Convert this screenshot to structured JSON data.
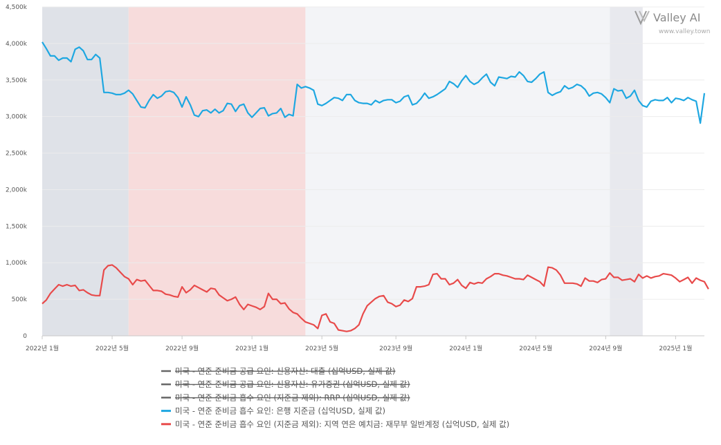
{
  "brand": {
    "name": "Valley AI",
    "url": "www.valley.town",
    "icon": "valley-logo-icon"
  },
  "chart_data": {
    "type": "line",
    "x_start": "2022-01",
    "x_ticks": [
      "2022년 1월",
      "2022년 5월",
      "2022년 9월",
      "2023년 1월",
      "2023년 5월",
      "2023년 9월",
      "2024년 1월",
      "2024년 5월",
      "2024년 9월",
      "2025년 1월"
    ],
    "x_tick_weeks": [
      0,
      17,
      34,
      51,
      68,
      86,
      103,
      120,
      137,
      154
    ],
    "y_ticks": [
      "0",
      "500k",
      "1,000k",
      "1,500k",
      "2,000k",
      "2,500k",
      "3,000k",
      "3,500k",
      "4,000k",
      "4,500k"
    ],
    "ylim": [
      0,
      4500
    ],
    "shaded_regions": [
      {
        "from_week": 0,
        "to_week": 21,
        "color": "#dfe2e8"
      },
      {
        "from_week": 21,
        "to_week": 64,
        "color": "#f7dcdc"
      },
      {
        "from_week": 64,
        "to_week": 138,
        "color": "#f3f4f7"
      },
      {
        "from_week": 138,
        "to_week": 146,
        "color": "#e8e9ee"
      }
    ],
    "legend": [
      {
        "label": "미국 - 연준 준비금 공급 요인: 신용자산: 대출 (십억USD, 실제 값)",
        "color": "#666666",
        "enabled": false
      },
      {
        "label": "미국 - 연준 준비금 공급 요인: 신용자산: 유가증권 (십억USD, 실제 값)",
        "color": "#666666",
        "enabled": false
      },
      {
        "label": "미국 - 연준 준비금 흡수 요인 (지준금 제외): RRP (십억USD, 실제 값)",
        "color": "#666666",
        "enabled": false
      },
      {
        "label": "미국 - 연준 준비금 흡수 요인: 은행 지준금 (십억USD, 실제 값)",
        "color": "#1ea7e1",
        "enabled": true
      },
      {
        "label": "미국 - 연준 준비금 흡수 요인 (지준금 제외): 지역 연은 예치금: 재무부 일반계정 (십억USD, 실제 값)",
        "color": "#e84a4a",
        "enabled": true
      }
    ],
    "series": [
      {
        "name": "미국 - 연준 준비금 흡수 요인: 은행 지준금 (십억USD, 실제 값)",
        "color": "#1ea7e1",
        "values": [
          4020,
          3930,
          3830,
          3830,
          3770,
          3800,
          3800,
          3750,
          3920,
          3950,
          3900,
          3780,
          3780,
          3850,
          3800,
          3330,
          3330,
          3320,
          3300,
          3300,
          3320,
          3360,
          3310,
          3220,
          3130,
          3120,
          3220,
          3300,
          3250,
          3280,
          3340,
          3350,
          3330,
          3260,
          3130,
          3270,
          3160,
          3020,
          3000,
          3080,
          3090,
          3050,
          3100,
          3050,
          3080,
          3180,
          3170,
          3070,
          3150,
          3170,
          3050,
          2990,
          3050,
          3110,
          3120,
          3010,
          3040,
          3050,
          3110,
          2990,
          3030,
          3010,
          3440,
          3390,
          3410,
          3390,
          3360,
          3170,
          3150,
          3180,
          3220,
          3260,
          3250,
          3220,
          3300,
          3300,
          3220,
          3190,
          3180,
          3180,
          3160,
          3220,
          3190,
          3220,
          3230,
          3230,
          3190,
          3210,
          3270,
          3290,
          3160,
          3180,
          3240,
          3320,
          3250,
          3270,
          3300,
          3340,
          3380,
          3480,
          3450,
          3400,
          3490,
          3560,
          3480,
          3440,
          3470,
          3530,
          3580,
          3470,
          3420,
          3540,
          3530,
          3520,
          3550,
          3540,
          3610,
          3560,
          3480,
          3470,
          3520,
          3580,
          3610,
          3330,
          3290,
          3320,
          3340,
          3420,
          3380,
          3400,
          3440,
          3420,
          3370,
          3280,
          3320,
          3330,
          3310,
          3260,
          3190,
          3380,
          3350,
          3360,
          3250,
          3280,
          3360,
          3220,
          3150,
          3130,
          3210,
          3230,
          3220,
          3220,
          3260,
          3190,
          3250,
          3240,
          3220,
          3260,
          3230,
          3210,
          2910,
          3320
        ]
      },
      {
        "name": "미국 - 연준 준비금 흡수 요인 (지준금 제외): 지역 연은 예치금: 재무부 일반계정 (십억USD, 실제 값)",
        "color": "#e84a4a",
        "values": [
          440,
          490,
          580,
          640,
          700,
          680,
          700,
          680,
          690,
          620,
          630,
          590,
          560,
          550,
          550,
          900,
          960,
          970,
          930,
          870,
          810,
          780,
          700,
          770,
          750,
          760,
          690,
          620,
          620,
          610,
          570,
          560,
          540,
          530,
          670,
          590,
          630,
          690,
          660,
          630,
          600,
          650,
          640,
          560,
          520,
          480,
          500,
          530,
          430,
          360,
          430,
          410,
          390,
          360,
          400,
          580,
          500,
          500,
          440,
          450,
          370,
          320,
          300,
          240,
          190,
          170,
          150,
          100,
          280,
          300,
          190,
          170,
          80,
          70,
          60,
          70,
          100,
          150,
          300,
          410,
          460,
          510,
          540,
          550,
          460,
          440,
          400,
          420,
          490,
          470,
          510,
          670,
          670,
          680,
          700,
          840,
          850,
          780,
          780,
          700,
          720,
          770,
          690,
          650,
          730,
          710,
          730,
          720,
          780,
          810,
          850,
          850,
          830,
          820,
          800,
          780,
          780,
          770,
          830,
          800,
          770,
          740,
          680,
          940,
          930,
          900,
          830,
          720,
          720,
          720,
          710,
          680,
          790,
          750,
          750,
          730,
          770,
          780,
          860,
          800,
          800,
          760,
          770,
          780,
          740,
          840,
          790,
          820,
          790,
          810,
          820,
          850,
          840,
          830,
          790,
          740,
          770,
          800,
          720,
          790,
          760,
          740,
          640
        ]
      }
    ]
  }
}
